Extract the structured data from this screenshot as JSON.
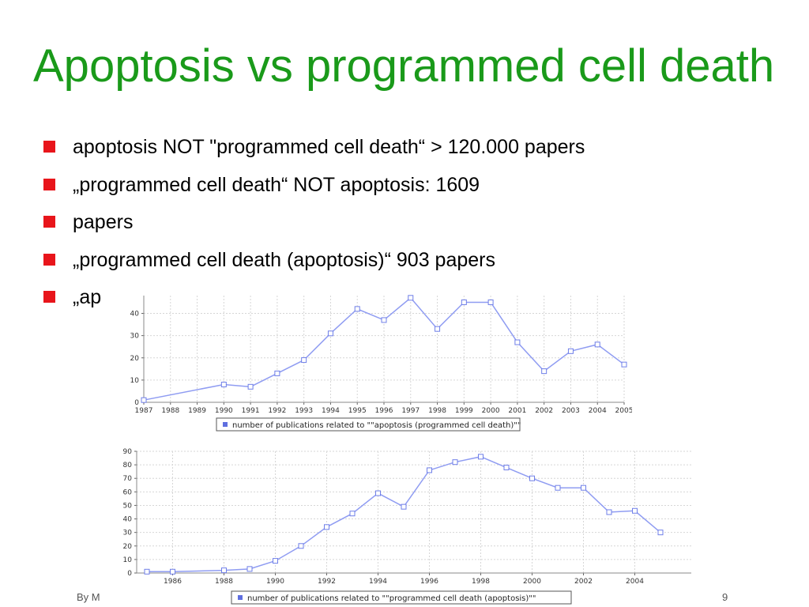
{
  "slide": {
    "title": "Apoptosis vs programmed cell death",
    "bullets": [
      "apoptosis NOT \"programmed cell death“ > 120.000 papers",
      "„programmed cell death“ NOT apoptosis: 1609",
      " papers",
      "„programmed cell death (apoptosis)“ 903 papers",
      " „ap"
    ],
    "footer_left": "By M",
    "page_number": "9",
    "bullet_color": "#e8151b",
    "title_color": "#1a9a1a"
  },
  "chart_data": [
    {
      "type": "line",
      "x": [
        1987,
        1990,
        1991,
        1992,
        1993,
        1994,
        1995,
        1996,
        1997,
        1998,
        1999,
        2000,
        2001,
        2002,
        2003,
        2004,
        2005
      ],
      "x_ticks": [
        1987,
        1988,
        1989,
        1990,
        1991,
        1992,
        1993,
        1994,
        1995,
        1996,
        1997,
        1998,
        1999,
        2000,
        2001,
        2002,
        2003,
        2004,
        2005
      ],
      "y_ticks": [
        0,
        10,
        20,
        30,
        40
      ],
      "series": [
        {
          "name": "number of publications related to \"\"apoptosis (programmed cell death)\"\"",
          "values": [
            1,
            8,
            7,
            13,
            19,
            31,
            42,
            37,
            47,
            33,
            45,
            45,
            27,
            14,
            23,
            26,
            17
          ],
          "color": "#8f9cf2"
        }
      ],
      "xlim": [
        1987,
        2005
      ],
      "ylim": [
        0,
        48
      ],
      "grid": true,
      "legend_position": "bottom-center"
    },
    {
      "type": "line",
      "x": [
        1985,
        1986,
        1988,
        1989,
        1990,
        1991,
        1992,
        1993,
        1994,
        1995,
        1996,
        1997,
        1998,
        1999,
        2000,
        2001,
        2002,
        2003,
        2004,
        2005
      ],
      "x_ticks": [
        1986,
        1988,
        1990,
        1992,
        1994,
        1996,
        1998,
        2000,
        2002,
        2004
      ],
      "y_ticks": [
        0,
        10,
        20,
        30,
        40,
        50,
        60,
        70,
        80,
        90
      ],
      "series": [
        {
          "name": "number of publications related to \"\"programmed cell death (apoptosis)\"\"",
          "values": [
            1,
            1,
            2,
            3,
            9,
            20,
            34,
            44,
            59,
            49,
            76,
            82,
            86,
            78,
            70,
            63,
            63,
            45,
            46,
            30
          ],
          "color": "#8f9cf2"
        }
      ],
      "xlim": [
        1984.6,
        2006.2
      ],
      "ylim": [
        0,
        90
      ],
      "grid": true,
      "legend_position": "bottom-center"
    }
  ]
}
